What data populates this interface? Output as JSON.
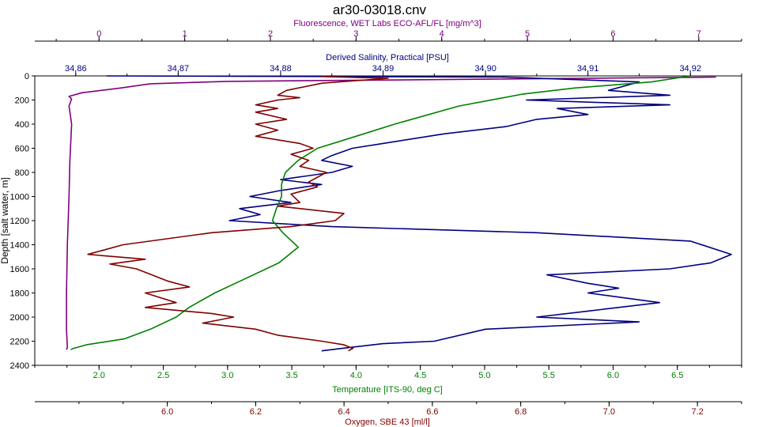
{
  "chart_data": {
    "type": "line",
    "title": "ar30-03018.cnv",
    "y_axis": {
      "label": "Depth [salt water, m]",
      "range": [
        0,
        2400
      ],
      "ticks": [
        0,
        200,
        400,
        600,
        800,
        1000,
        1200,
        1400,
        1600,
        1800,
        2000,
        2200,
        2400
      ]
    },
    "x_axes": [
      {
        "id": "fluorescence",
        "label": "Fluorescence, WET Labs ECO-AFL/FL [mg/m^3]",
        "range": [
          -0.75,
          7.5
        ],
        "ticks": [
          0,
          1,
          2,
          3,
          4,
          5,
          6,
          7
        ],
        "tick_labels": [
          "0",
          "1",
          "2",
          "3",
          "4",
          "5",
          "6",
          "7"
        ],
        "color": "#800080"
      },
      {
        "id": "salinity",
        "label": "Derived Salinity, Practical [PSU]",
        "range": [
          34.856,
          34.925
        ],
        "ticks": [
          34.86,
          34.87,
          34.88,
          34.89,
          34.9,
          34.91,
          34.92
        ],
        "tick_labels": [
          "34.86",
          "34.87",
          "34.88",
          "34.89",
          "34.90",
          "34.91",
          "34.92"
        ],
        "color": "#000080"
      },
      {
        "id": "temperature",
        "label": "Temperature [ITS-90, deg C]",
        "range": [
          1.5,
          7.0
        ],
        "ticks": [
          2.0,
          2.5,
          3.0,
          3.5,
          4.0,
          4.5,
          5.0,
          5.5,
          6.0,
          6.5
        ],
        "tick_labels": [
          "2.0",
          "2.5",
          "3.0",
          "3.5",
          "4.0",
          "4.5",
          "5.0",
          "5.5",
          "6.0",
          "6.5"
        ],
        "color": "#008000"
      },
      {
        "id": "oxygen",
        "label": "Oxygen, SBE 43 [ml/l]",
        "range": [
          5.7,
          7.3
        ],
        "ticks": [
          6.0,
          6.2,
          6.4,
          6.6,
          6.8,
          7.0,
          7.2
        ],
        "tick_labels": [
          "6.0",
          "6.2",
          "6.4",
          "6.6",
          "6.8",
          "7.0",
          "7.2"
        ],
        "color": "#800000"
      }
    ],
    "series": [
      {
        "axis": "fluorescence",
        "color": "#800080",
        "points": [
          [
            7.2,
            10
          ],
          [
            4.0,
            30
          ],
          [
            1.5,
            45
          ],
          [
            0.6,
            65
          ],
          [
            0.25,
            100
          ],
          [
            -0.2,
            140
          ],
          [
            -0.35,
            170
          ],
          [
            -0.32,
            190
          ],
          [
            -0.35,
            250
          ],
          [
            -0.32,
            400
          ],
          [
            -0.34,
            700
          ],
          [
            -0.35,
            1000
          ],
          [
            -0.37,
            1400
          ],
          [
            -0.38,
            1800
          ],
          [
            -0.38,
            2100
          ],
          [
            -0.37,
            2250
          ],
          [
            -0.38,
            2270
          ]
        ]
      },
      {
        "axis": "salinity",
        "color": "#000080",
        "points": [
          [
            34.863,
            0
          ],
          [
            34.902,
            10
          ],
          [
            34.915,
            50
          ],
          [
            34.912,
            120
          ],
          [
            34.918,
            160
          ],
          [
            34.904,
            200
          ],
          [
            34.918,
            240
          ],
          [
            34.907,
            270
          ],
          [
            34.91,
            320
          ],
          [
            34.905,
            360
          ],
          [
            34.902,
            420
          ],
          [
            34.896,
            480
          ],
          [
            34.89,
            560
          ],
          [
            34.887,
            600
          ],
          [
            34.885,
            660
          ],
          [
            34.884,
            700
          ],
          [
            34.887,
            750
          ],
          [
            34.885,
            800
          ],
          [
            34.88,
            860
          ],
          [
            34.884,
            900
          ],
          [
            34.88,
            950
          ],
          [
            34.877,
            1000
          ],
          [
            34.881,
            1050
          ],
          [
            34.876,
            1100
          ],
          [
            34.878,
            1150
          ],
          [
            34.875,
            1200
          ],
          [
            34.885,
            1250
          ],
          [
            34.905,
            1300
          ],
          [
            34.92,
            1370
          ],
          [
            34.924,
            1480
          ],
          [
            34.922,
            1550
          ],
          [
            34.918,
            1600
          ],
          [
            34.906,
            1650
          ],
          [
            34.91,
            1720
          ],
          [
            34.913,
            1760
          ],
          [
            34.91,
            1800
          ],
          [
            34.917,
            1880
          ],
          [
            34.91,
            1950
          ],
          [
            34.905,
            2000
          ],
          [
            34.915,
            2040
          ],
          [
            34.9,
            2100
          ],
          [
            34.895,
            2200
          ],
          [
            34.89,
            2220
          ],
          [
            34.886,
            2260
          ],
          [
            34.884,
            2280
          ]
        ]
      },
      {
        "axis": "temperature",
        "color": "#008000",
        "points": [
          [
            6.6,
            0
          ],
          [
            6.3,
            50
          ],
          [
            5.7,
            100
          ],
          [
            5.3,
            150
          ],
          [
            4.8,
            250
          ],
          [
            4.3,
            400
          ],
          [
            4.0,
            500
          ],
          [
            3.7,
            600
          ],
          [
            3.55,
            700
          ],
          [
            3.45,
            800
          ],
          [
            3.42,
            900
          ],
          [
            3.42,
            1000
          ],
          [
            3.38,
            1100
          ],
          [
            3.35,
            1200
          ],
          [
            3.43,
            1300
          ],
          [
            3.55,
            1420
          ],
          [
            3.4,
            1550
          ],
          [
            3.1,
            1700
          ],
          [
            2.9,
            1800
          ],
          [
            2.7,
            1920
          ],
          [
            2.6,
            2000
          ],
          [
            2.4,
            2100
          ],
          [
            2.2,
            2180
          ],
          [
            1.9,
            2230
          ],
          [
            1.8,
            2260
          ],
          [
            1.78,
            2270
          ]
        ]
      },
      {
        "axis": "oxygen",
        "color": "#800000",
        "points": [
          [
            6.35,
            5
          ],
          [
            6.5,
            20
          ],
          [
            6.35,
            60
          ],
          [
            6.27,
            120
          ],
          [
            6.25,
            160
          ],
          [
            6.3,
            180
          ],
          [
            6.25,
            200
          ],
          [
            6.2,
            240
          ],
          [
            6.25,
            270
          ],
          [
            6.2,
            300
          ],
          [
            6.27,
            360
          ],
          [
            6.2,
            400
          ],
          [
            6.25,
            450
          ],
          [
            6.2,
            500
          ],
          [
            6.3,
            560
          ],
          [
            6.33,
            600
          ],
          [
            6.28,
            650
          ],
          [
            6.32,
            700
          ],
          [
            6.3,
            750
          ],
          [
            6.36,
            800
          ],
          [
            6.32,
            880
          ],
          [
            6.34,
            920
          ],
          [
            6.28,
            980
          ],
          [
            6.3,
            1050
          ],
          [
            6.25,
            1080
          ],
          [
            6.4,
            1140
          ],
          [
            6.38,
            1200
          ],
          [
            6.28,
            1250
          ],
          [
            6.1,
            1300
          ],
          [
            5.9,
            1400
          ],
          [
            5.82,
            1480
          ],
          [
            5.95,
            1520
          ],
          [
            5.87,
            1560
          ],
          [
            5.93,
            1600
          ],
          [
            6.0,
            1700
          ],
          [
            6.05,
            1750
          ],
          [
            5.95,
            1800
          ],
          [
            6.02,
            1880
          ],
          [
            5.95,
            1920
          ],
          [
            6.1,
            1970
          ],
          [
            6.15,
            2000
          ],
          [
            6.08,
            2050
          ],
          [
            6.2,
            2100
          ],
          [
            6.25,
            2150
          ],
          [
            6.35,
            2200
          ],
          [
            6.4,
            2230
          ],
          [
            6.42,
            2260
          ],
          [
            6.41,
            2280
          ]
        ]
      }
    ],
    "grid": false,
    "legend": "none"
  }
}
